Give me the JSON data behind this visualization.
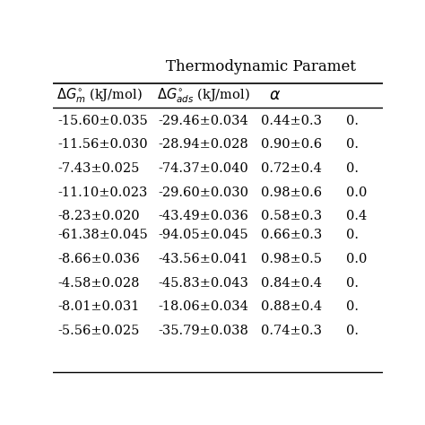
{
  "title": "Thermodynamic Paramet",
  "col1": [
    "-15.60±0.035",
    "-11.56±0.030",
    "-7.43±0.025",
    "-11.10±0.023",
    "-8.23±0.020",
    "-61.38±0.045",
    "-8.66±0.036",
    "-4.58±0.028",
    "-8.01±0.031",
    "-5.56±0.025"
  ],
  "col2": [
    "-29.46±0.034",
    "-28.94±0.028",
    "-74.37±0.040",
    "-29.60±0.030",
    "-43.49±0.036",
    "-94.05±0.045",
    "-43.56±0.041",
    "-45.83±0.043",
    "-18.06±0.034",
    "-35.79±0.038"
  ],
  "col3": [
    "0.44±0.3",
    "0.90±0.6",
    "0.72±0.4",
    "0.98±0.6",
    "0.58±0.3",
    "0.66±0.3",
    "0.98±0.5",
    "0.84±0.4",
    "0.88±0.4",
    "0.74±0.3"
  ],
  "col4_partial": [
    "0.",
    "0.",
    "0.",
    "0.0",
    "0.4",
    "0.",
    "0.0",
    "0.",
    "0.",
    "0."
  ],
  "background_color": "#ffffff",
  "font_size": 10.5,
  "title_font_size": 12
}
